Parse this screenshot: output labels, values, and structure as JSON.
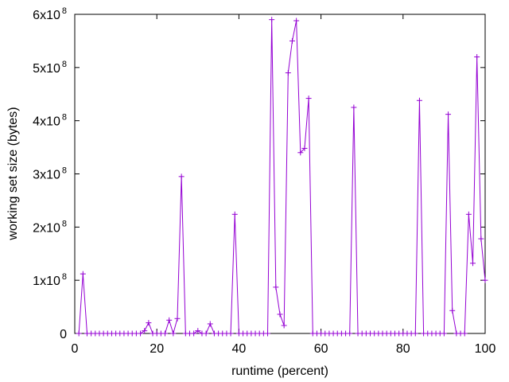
{
  "chart_data": {
    "type": "line",
    "title": "",
    "xlabel": "runtime (percent)",
    "ylabel": "working set size (bytes)",
    "xlim": [
      0,
      100
    ],
    "ylim": [
      0,
      600000000
    ],
    "grid": false,
    "legend": "none",
    "series_color": "#9400d3",
    "x_ticks": [
      {
        "value": 0,
        "label": "0"
      },
      {
        "value": 20,
        "label": "20"
      },
      {
        "value": 40,
        "label": "40"
      },
      {
        "value": 60,
        "label": "60"
      },
      {
        "value": 80,
        "label": "80"
      },
      {
        "value": 100,
        "label": "100"
      }
    ],
    "y_ticks": [
      {
        "value": 0,
        "label": "0",
        "exp": ""
      },
      {
        "value": 100000000,
        "label": "1x10",
        "exp": "8"
      },
      {
        "value": 200000000,
        "label": "2x10",
        "exp": "8"
      },
      {
        "value": 300000000,
        "label": "3x10",
        "exp": "8"
      },
      {
        "value": 400000000,
        "label": "4x10",
        "exp": "8"
      },
      {
        "value": 500000000,
        "label": "5x10",
        "exp": "8"
      },
      {
        "value": 600000000,
        "label": "6x10",
        "exp": "8"
      }
    ],
    "series": [
      {
        "x": [
          1,
          2,
          3,
          4,
          5,
          6,
          7,
          8,
          9,
          10,
          11,
          12,
          13,
          14,
          15,
          16,
          17,
          18,
          19,
          20,
          21,
          22,
          23,
          24,
          25,
          26,
          27,
          28,
          29,
          30,
          31,
          32,
          33,
          34,
          35,
          36,
          37,
          38,
          39,
          40,
          41,
          42,
          43,
          44,
          45,
          46,
          47,
          48,
          49,
          50,
          51,
          52,
          53,
          54,
          55,
          56,
          57,
          58,
          59,
          60,
          61,
          62,
          63,
          64,
          65,
          66,
          67,
          68,
          69,
          70,
          71,
          72,
          73,
          74,
          75,
          76,
          77,
          78,
          79,
          80,
          81,
          82,
          83,
          84,
          85,
          86,
          87,
          88,
          89,
          90,
          91,
          92,
          93,
          94,
          95,
          96,
          97,
          98,
          99,
          100
        ],
        "y": [
          0,
          112000000,
          0,
          0,
          0,
          0,
          0,
          0,
          0,
          0,
          0,
          0,
          0,
          0,
          0,
          0,
          5000000,
          20000000,
          0,
          0,
          0,
          0,
          25000000,
          0,
          28000000,
          295000000,
          0,
          0,
          0,
          5000000,
          0,
          0,
          18000000,
          0,
          0,
          0,
          0,
          0,
          224000000,
          0,
          0,
          0,
          0,
          0,
          0,
          0,
          0,
          590000000,
          87000000,
          36000000,
          15000000,
          490000000,
          550000000,
          588000000,
          340000000,
          348000000,
          442000000,
          0,
          0,
          0,
          0,
          0,
          0,
          0,
          0,
          0,
          0,
          425000000,
          0,
          0,
          0,
          0,
          0,
          0,
          0,
          0,
          0,
          0,
          0,
          0,
          0,
          0,
          0,
          438000000,
          0,
          0,
          0,
          0,
          0,
          0,
          412000000,
          43000000,
          0,
          0,
          0,
          224000000,
          132000000,
          520000000,
          178000000,
          100000000
        ]
      }
    ]
  }
}
